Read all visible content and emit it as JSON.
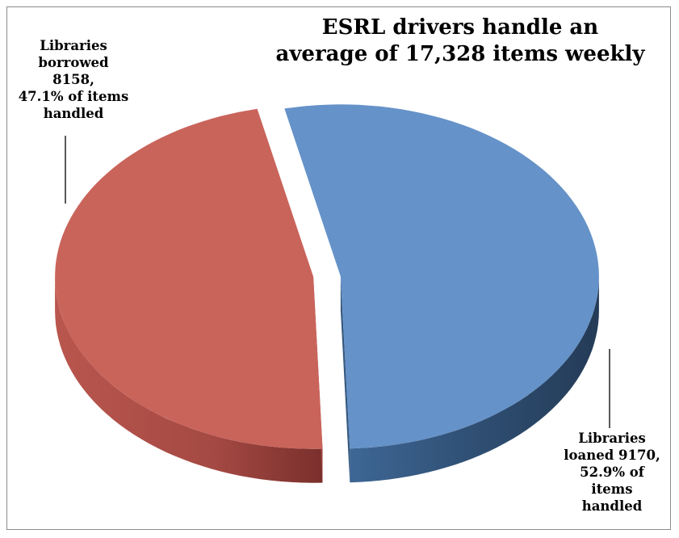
{
  "chart_data": {
    "type": "pie",
    "title": "ESRL drivers handle an average of 17,328 items weekly",
    "title_lines": [
      "ESRL drivers handle an",
      "average of 17,328 items weekly"
    ],
    "style": "3d-exploded",
    "slices": [
      {
        "name": "Libraries loaned",
        "value": 9170,
        "percent": 52.9,
        "color": "#6592c8",
        "label_lines": [
          "Libraries",
          "loaned 9170,",
          "52.9% of items",
          "handled"
        ]
      },
      {
        "name": "Libraries borrowed",
        "value": 8158,
        "percent": 47.1,
        "color": "#c9645b",
        "label_lines": [
          "Libraries",
          "borrowed",
          "8158,",
          "47.1% of items",
          "handled"
        ]
      }
    ]
  }
}
